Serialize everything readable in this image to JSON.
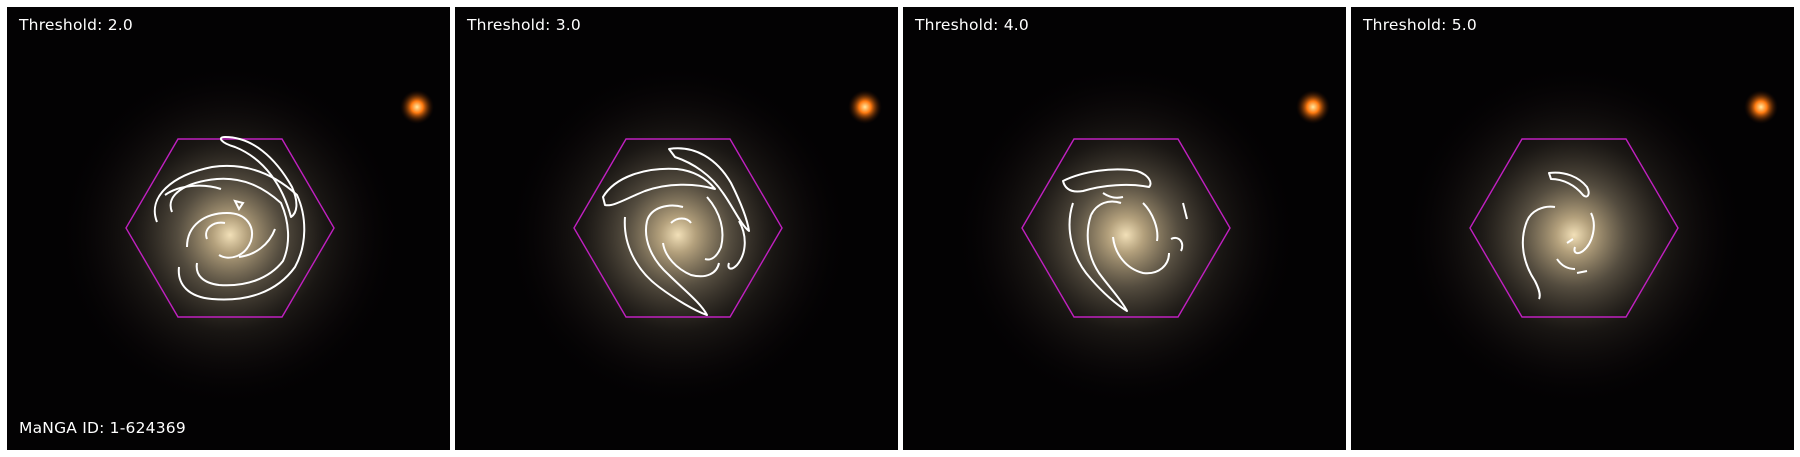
{
  "panels": [
    {
      "label": "Threshold: 2.0"
    },
    {
      "label": "Threshold: 3.0"
    },
    {
      "label": "Threshold: 4.0"
    },
    {
      "label": "Threshold: 5.0"
    }
  ],
  "galaxy_id": "MaNGA ID: 1-624369",
  "colors": {
    "background": "#000000",
    "hexagon": "#c020c0",
    "contour": "#ffffff",
    "star": "#ff7a10",
    "galaxy_core": "#f2e0b8"
  },
  "icons": {
    "hexagon": "ifu-footprint-hexagon",
    "contour": "arm-mask-contour"
  }
}
